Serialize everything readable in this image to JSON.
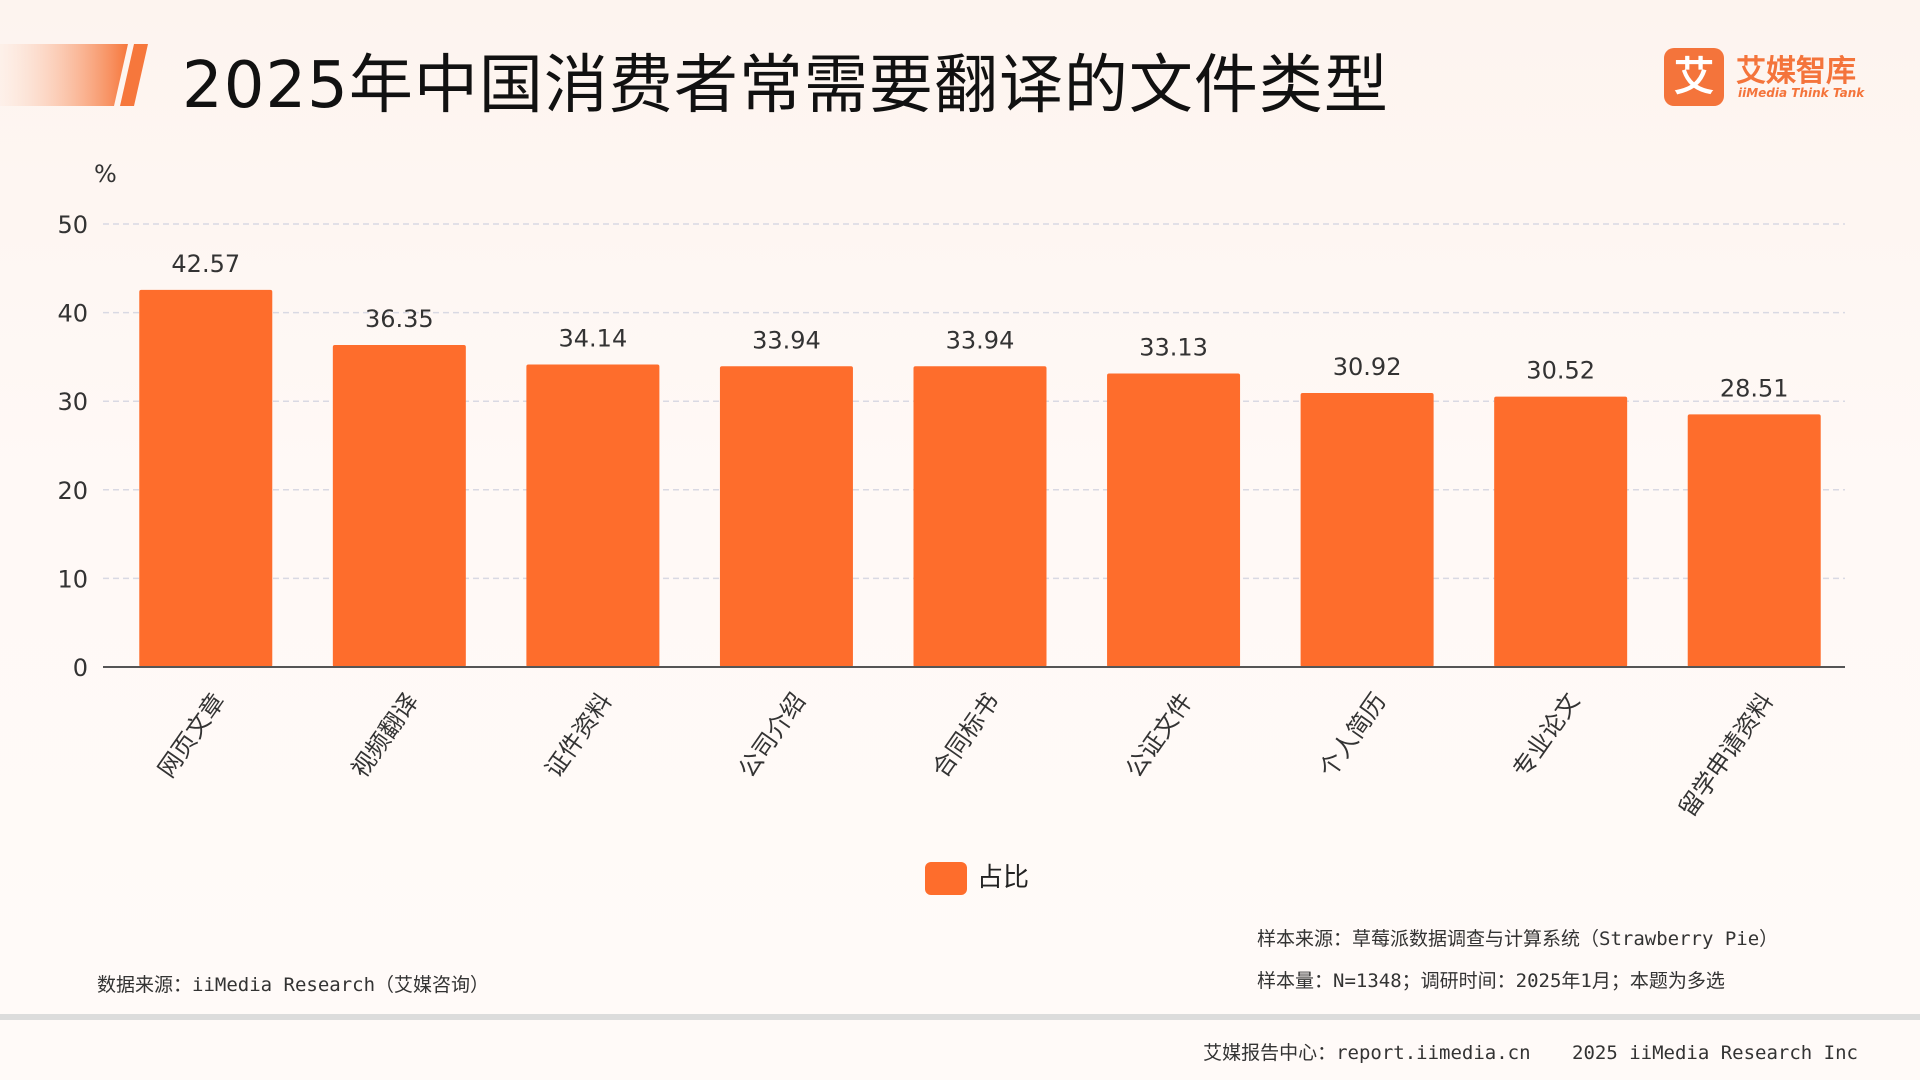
{
  "header": {
    "title": "2025年中国消费者常需要翻译的文件类型"
  },
  "logo": {
    "mark": "艾",
    "name": "艾媒智库",
    "sub": "iiMedia Think Tank"
  },
  "chart_data": {
    "type": "bar",
    "unit": "%",
    "categories": [
      "网页文章",
      "视频翻译",
      "证件资料",
      "公司介绍",
      "合同标书",
      "公证文件",
      "个人简历",
      "专业论文",
      "留学申请资料"
    ],
    "series": [
      {
        "name": "占比",
        "values": [
          42.57,
          36.35,
          34.14,
          33.94,
          33.94,
          33.13,
          30.92,
          30.52,
          28.51
        ]
      }
    ],
    "ylim": [
      0,
      50
    ],
    "yticks": [
      0,
      10,
      20,
      30,
      40,
      50
    ],
    "grid": true,
    "legend": "bottom-center",
    "colors": {
      "bar": "#fe6d2c",
      "grid": "#d9d9e3",
      "axis": "#555555"
    }
  },
  "notes": {
    "sample_source": "样本来源：草莓派数据调查与计算系统（Strawberry Pie）",
    "sample_size": "样本量：N=1348；调研时间：2025年1月；本题为多选",
    "data_source": "数据来源：iiMedia Research（艾媒咨询）"
  },
  "footer": {
    "center": "艾媒报告中心：report.iimedia.cn",
    "copyright": "2025 iiMedia Research Inc"
  }
}
